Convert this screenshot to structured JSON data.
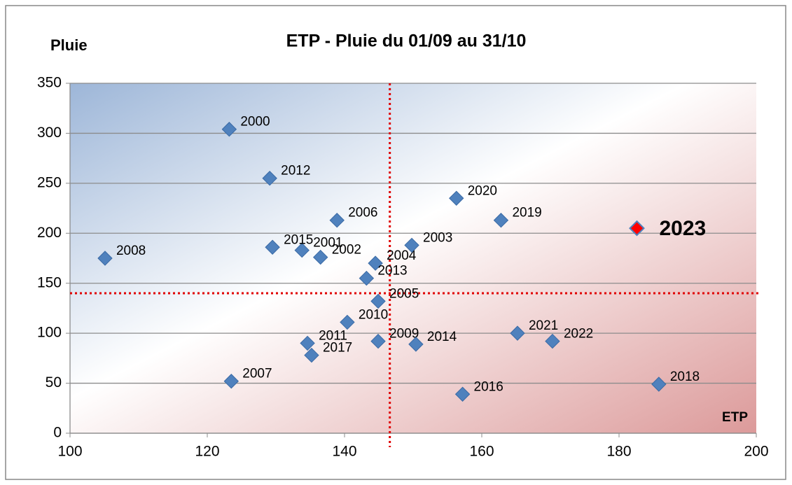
{
  "chart_data": {
    "type": "scatter",
    "title": "ETP - Pluie du 01/09 au 31/10",
    "y_label": "Pluie",
    "x_label": "ETP",
    "xlim": [
      100,
      200
    ],
    "xticks": [
      100,
      120,
      140,
      160,
      180,
      200
    ],
    "ylim": [
      0,
      350
    ],
    "yticks": [
      0,
      50,
      100,
      150,
      200,
      250,
      300,
      350
    ],
    "grid": true,
    "color": "#4f81bd",
    "labels": [
      "2000",
      "2012",
      "2020",
      "2019",
      "2006",
      "2001",
      "2015",
      "2002",
      "2004",
      "2008",
      "2003",
      "2013",
      "2005",
      "2010",
      "2011",
      "2017",
      "2009",
      "2014",
      "2021",
      "2022",
      "2018",
      "2016",
      "2007"
    ],
    "x": [
      123.2,
      129.1,
      156.3,
      162.8,
      138.9,
      133.8,
      129.5,
      136.5,
      144.5,
      105.1,
      149.8,
      143.2,
      144.9,
      140.4,
      134.6,
      135.2,
      144.9,
      150.4,
      165.2,
      170.3,
      185.8,
      157.2,
      123.5
    ],
    "values": [
      304,
      255,
      235,
      213,
      213,
      183,
      186,
      176,
      170,
      175,
      188,
      155,
      132,
      111,
      90,
      78,
      92,
      89,
      100,
      92,
      49,
      39,
      52
    ],
    "highlight": {
      "label": "2023",
      "x": 182.6,
      "y": 205,
      "color": "#ff0000"
    },
    "x_ref_line": 146.6,
    "y_ref_line": 140,
    "ref_line_color": "#e00000"
  }
}
